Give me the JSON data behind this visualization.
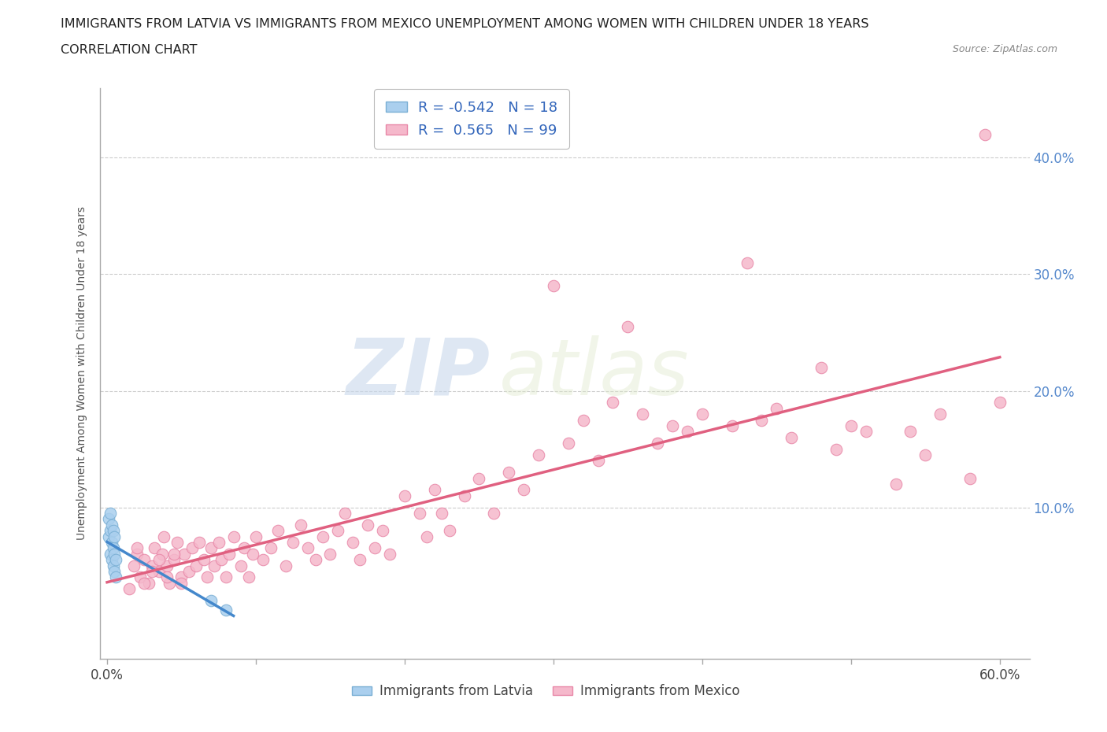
{
  "title_line1": "IMMIGRANTS FROM LATVIA VS IMMIGRANTS FROM MEXICO UNEMPLOYMENT AMONG WOMEN WITH CHILDREN UNDER 18 YEARS",
  "title_line2": "CORRELATION CHART",
  "source_text": "Source: ZipAtlas.com",
  "ylabel": "Unemployment Among Women with Children Under 18 years",
  "xlim": [
    -0.005,
    0.62
  ],
  "ylim": [
    -0.03,
    0.46
  ],
  "x_ticks": [
    0.0,
    0.1,
    0.2,
    0.3,
    0.4,
    0.5,
    0.6
  ],
  "y_ticks": [
    0.0,
    0.1,
    0.2,
    0.3,
    0.4
  ],
  "grid_color": "#cccccc",
  "bg_color": "#ffffff",
  "latvia_color": "#aacfee",
  "latvia_edge_color": "#7aafd4",
  "mexico_color": "#f5b8cb",
  "mexico_edge_color": "#e888a8",
  "latvia_trendline_color": "#4488cc",
  "mexico_trendline_color": "#e06080",
  "R_latvia": -0.542,
  "N_latvia": 18,
  "R_mexico": 0.565,
  "N_mexico": 99,
  "watermark_zip": "ZIP",
  "watermark_atlas": "atlas",
  "legend_label_latvia": "Immigrants from Latvia",
  "legend_label_mexico": "Immigrants from Mexico",
  "latvia_x": [
    0.001,
    0.001,
    0.002,
    0.002,
    0.002,
    0.003,
    0.003,
    0.003,
    0.004,
    0.004,
    0.004,
    0.005,
    0.005,
    0.005,
    0.006,
    0.006,
    0.07,
    0.08
  ],
  "latvia_y": [
    0.075,
    0.09,
    0.06,
    0.08,
    0.095,
    0.055,
    0.07,
    0.085,
    0.05,
    0.065,
    0.08,
    0.045,
    0.06,
    0.075,
    0.04,
    0.055,
    0.02,
    0.012
  ],
  "mexico_x": [
    0.02,
    0.022,
    0.025,
    0.028,
    0.03,
    0.032,
    0.035,
    0.037,
    0.038,
    0.04,
    0.042,
    0.045,
    0.047,
    0.05,
    0.052,
    0.055,
    0.057,
    0.06,
    0.062,
    0.065,
    0.067,
    0.07,
    0.072,
    0.075,
    0.077,
    0.08,
    0.082,
    0.085,
    0.09,
    0.092,
    0.095,
    0.098,
    0.1,
    0.105,
    0.11,
    0.115,
    0.12,
    0.125,
    0.13,
    0.135,
    0.14,
    0.145,
    0.15,
    0.155,
    0.16,
    0.165,
    0.17,
    0.175,
    0.18,
    0.185,
    0.19,
    0.2,
    0.21,
    0.215,
    0.22,
    0.225,
    0.23,
    0.24,
    0.25,
    0.26,
    0.27,
    0.28,
    0.29,
    0.3,
    0.31,
    0.32,
    0.33,
    0.34,
    0.35,
    0.36,
    0.37,
    0.38,
    0.39,
    0.4,
    0.42,
    0.43,
    0.44,
    0.45,
    0.46,
    0.48,
    0.49,
    0.5,
    0.51,
    0.53,
    0.54,
    0.55,
    0.56,
    0.58,
    0.59,
    0.6,
    0.015,
    0.018,
    0.02,
    0.025,
    0.03,
    0.035,
    0.04,
    0.045,
    0.05
  ],
  "mexico_y": [
    0.06,
    0.04,
    0.055,
    0.035,
    0.05,
    0.065,
    0.045,
    0.06,
    0.075,
    0.05,
    0.035,
    0.055,
    0.07,
    0.04,
    0.06,
    0.045,
    0.065,
    0.05,
    0.07,
    0.055,
    0.04,
    0.065,
    0.05,
    0.07,
    0.055,
    0.04,
    0.06,
    0.075,
    0.05,
    0.065,
    0.04,
    0.06,
    0.075,
    0.055,
    0.065,
    0.08,
    0.05,
    0.07,
    0.085,
    0.065,
    0.055,
    0.075,
    0.06,
    0.08,
    0.095,
    0.07,
    0.055,
    0.085,
    0.065,
    0.08,
    0.06,
    0.11,
    0.095,
    0.075,
    0.115,
    0.095,
    0.08,
    0.11,
    0.125,
    0.095,
    0.13,
    0.115,
    0.145,
    0.29,
    0.155,
    0.175,
    0.14,
    0.19,
    0.255,
    0.18,
    0.155,
    0.17,
    0.165,
    0.18,
    0.17,
    0.31,
    0.175,
    0.185,
    0.16,
    0.22,
    0.15,
    0.17,
    0.165,
    0.12,
    0.165,
    0.145,
    0.18,
    0.125,
    0.42,
    0.19,
    0.03,
    0.05,
    0.065,
    0.035,
    0.045,
    0.055,
    0.04,
    0.06,
    0.035
  ]
}
